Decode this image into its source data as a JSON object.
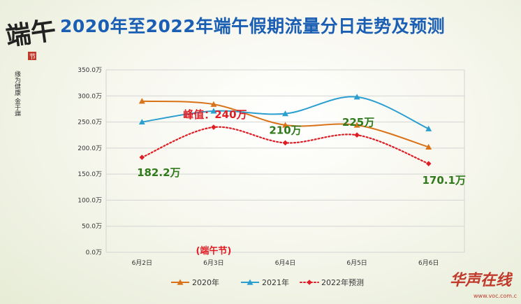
{
  "title": "2020年至2022年端午假期流量分日走势及预测",
  "decoration": {
    "brush_text": "端午",
    "seal_text": "节",
    "side_text": "缘为健康 金于端午"
  },
  "logo": {
    "text": "华声在线",
    "url": "www.voc.com.cn"
  },
  "chart_data": {
    "type": "line",
    "title": "2020年至2022年端午假期流量分日走势及预测",
    "categories": [
      "6月2日",
      "6月3日",
      "6月4日",
      "6月5日",
      "6月6日"
    ],
    "yticks": [
      "0.0万",
      "50.0万",
      "100.0万",
      "150.0万",
      "200.0万",
      "250.0万",
      "300.0万",
      "350.0万"
    ],
    "ylim": [
      0,
      350
    ],
    "grid": true,
    "legend_position": "bottom",
    "series": [
      {
        "name": "2020年",
        "values": [
          290,
          284,
          244,
          244,
          202
        ],
        "color": "#d9731a",
        "marker": "triangle",
        "dashed": false
      },
      {
        "name": "2021年",
        "values": [
          250,
          271,
          266,
          298,
          237
        ],
        "color": "#2a9fd0",
        "marker": "triangle",
        "dashed": false
      },
      {
        "name": "2022年预测",
        "values": [
          182.2,
          240,
          210,
          225,
          170.1
        ],
        "color": "#e01c24",
        "marker": "diamond",
        "dashed": true
      }
    ],
    "annotations": [
      {
        "text": "182.2万",
        "category_index": 0,
        "color": "#2f7a1a"
      },
      {
        "text": "峰值：240万",
        "category_index": 1,
        "color": "#e01c24"
      },
      {
        "text": "210万",
        "category_index": 2,
        "color": "#2f7a1a"
      },
      {
        "text": "225万",
        "category_index": 3,
        "color": "#2f7a1a"
      },
      {
        "text": "170.1万",
        "category_index": 4,
        "color": "#2f7a1a"
      }
    ],
    "category_note": {
      "text": "(端午节)",
      "category_index": 1,
      "color": "#e01c24"
    }
  }
}
